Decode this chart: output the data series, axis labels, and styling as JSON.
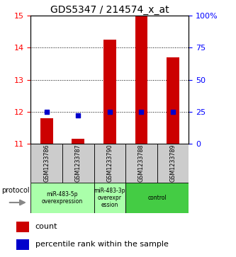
{
  "title": "GDS5347 / 214574_x_at",
  "samples": [
    "GSM1233786",
    "GSM1233787",
    "GSM1233790",
    "GSM1233788",
    "GSM1233789"
  ],
  "red_values": [
    11.8,
    11.15,
    14.25,
    15.0,
    13.7
  ],
  "blue_values": [
    25,
    22,
    25,
    25,
    25
  ],
  "ylim_left": [
    11,
    15
  ],
  "ylim_right": [
    0,
    100
  ],
  "yticks_left": [
    11,
    12,
    13,
    14,
    15
  ],
  "yticks_right": [
    0,
    25,
    50,
    75,
    100
  ],
  "ytick_labels_right": [
    "0",
    "25",
    "50",
    "75",
    "100%"
  ],
  "groups": [
    {
      "label": "miR-483-5p\noverexpression",
      "start": 0,
      "end": 2,
      "color": "#aaffaa"
    },
    {
      "label": "miR-483-3p\noverexpr\nession",
      "start": 2,
      "end": 3,
      "color": "#aaffaa"
    },
    {
      "label": "control",
      "start": 3,
      "end": 5,
      "color": "#44cc44"
    }
  ],
  "protocol_label": "protocol",
  "legend_red_label": "count",
  "legend_blue_label": "percentile rank within the sample",
  "bar_color": "#cc0000",
  "dot_color": "#0000cc",
  "bar_bottom": 11,
  "bg_color": "#ffffff",
  "plot_bg": "#ffffff",
  "gray_color": "#cccccc"
}
